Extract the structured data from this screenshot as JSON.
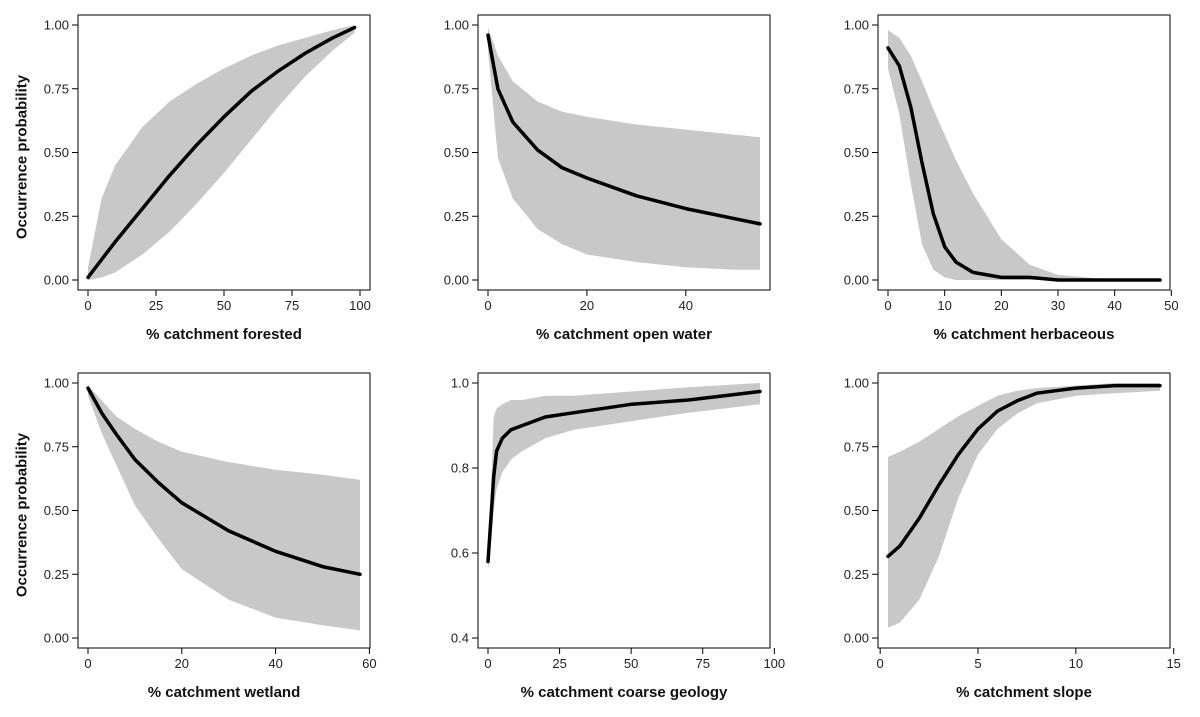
{
  "ylabel": "Occurrence probability",
  "colors": {
    "band": "#c8c8c8",
    "line": "#000000",
    "axis": "#000000"
  },
  "chart_data": [
    {
      "type": "line",
      "xlabel": "% catchment forested",
      "xlim": [
        0,
        100
      ],
      "ylim": [
        0.0,
        1.0
      ],
      "xticks": [
        "0",
        "25",
        "50",
        "75",
        "100"
      ],
      "yticks": [
        "0.00",
        "0.25",
        "0.50",
        "0.75",
        "1.00"
      ],
      "x": [
        0,
        5,
        10,
        20,
        30,
        40,
        50,
        60,
        70,
        80,
        90,
        98
      ],
      "y": [
        0.01,
        0.08,
        0.15,
        0.28,
        0.41,
        0.53,
        0.64,
        0.74,
        0.82,
        0.89,
        0.95,
        0.99
      ],
      "lower": [
        0.0,
        0.01,
        0.03,
        0.1,
        0.19,
        0.3,
        0.42,
        0.55,
        0.68,
        0.8,
        0.9,
        0.97
      ],
      "upper": [
        0.05,
        0.32,
        0.45,
        0.6,
        0.7,
        0.77,
        0.83,
        0.88,
        0.92,
        0.95,
        0.98,
        1.0
      ]
    },
    {
      "type": "line",
      "xlabel": "% catchment open water",
      "xlim": [
        0,
        55
      ],
      "ylim": [
        0.0,
        1.0
      ],
      "xticks": [
        "0",
        "20",
        "40"
      ],
      "yticks": [
        "0.00",
        "0.25",
        "0.50",
        "0.75",
        "1.00"
      ],
      "x": [
        0,
        2,
        5,
        10,
        15,
        20,
        30,
        40,
        50,
        55
      ],
      "y": [
        0.96,
        0.75,
        0.62,
        0.51,
        0.44,
        0.4,
        0.33,
        0.28,
        0.24,
        0.22
      ],
      "lower": [
        0.9,
        0.48,
        0.32,
        0.2,
        0.14,
        0.1,
        0.07,
        0.05,
        0.04,
        0.04
      ],
      "upper": [
        0.99,
        0.88,
        0.78,
        0.7,
        0.66,
        0.64,
        0.61,
        0.59,
        0.57,
        0.56
      ]
    },
    {
      "type": "line",
      "xlabel": "% catchment herbaceous",
      "xlim": [
        0,
        48
      ],
      "ylim": [
        0.0,
        1.0
      ],
      "xticks": [
        "0",
        "10",
        "20",
        "30",
        "40",
        "50"
      ],
      "yticks": [
        "0.00",
        "0.25",
        "0.50",
        "0.75",
        "1.00"
      ],
      "x": [
        0,
        2,
        4,
        6,
        8,
        10,
        12,
        15,
        20,
        25,
        30,
        40,
        48
      ],
      "y": [
        0.91,
        0.84,
        0.68,
        0.46,
        0.26,
        0.13,
        0.07,
        0.03,
        0.01,
        0.01,
        0.0,
        0.0,
        0.0
      ],
      "lower": [
        0.83,
        0.65,
        0.38,
        0.14,
        0.04,
        0.01,
        0.0,
        0.0,
        0.0,
        0.0,
        0.0,
        0.0,
        0.0
      ],
      "upper": [
        0.98,
        0.95,
        0.88,
        0.78,
        0.67,
        0.57,
        0.47,
        0.34,
        0.16,
        0.06,
        0.02,
        0.0,
        0.0
      ]
    },
    {
      "type": "line",
      "xlabel": "% catchment wetland",
      "xlim": [
        0,
        58
      ],
      "ylim": [
        0.0,
        1.0
      ],
      "xticks": [
        "0",
        "20",
        "40",
        "60"
      ],
      "yticks": [
        "0.00",
        "0.25",
        "0.50",
        "0.75",
        "1.00"
      ],
      "x": [
        0,
        3,
        6,
        10,
        15,
        20,
        30,
        40,
        50,
        58
      ],
      "y": [
        0.98,
        0.88,
        0.8,
        0.7,
        0.61,
        0.53,
        0.42,
        0.34,
        0.28,
        0.25
      ],
      "lower": [
        0.95,
        0.8,
        0.68,
        0.52,
        0.39,
        0.27,
        0.15,
        0.08,
        0.05,
        0.03
      ],
      "upper": [
        0.99,
        0.93,
        0.87,
        0.82,
        0.77,
        0.73,
        0.69,
        0.66,
        0.64,
        0.62
      ]
    },
    {
      "type": "line",
      "xlabel": "% catchment coarse geology",
      "xlim": [
        0,
        95
      ],
      "ylim": [
        0.4,
        1.0
      ],
      "xticks": [
        "0",
        "25",
        "50",
        "75",
        "100"
      ],
      "yticks": [
        "0.4",
        "0.6",
        "0.8",
        "1.0"
      ],
      "x": [
        0,
        1,
        2,
        3,
        5,
        8,
        12,
        20,
        30,
        50,
        70,
        95
      ],
      "y": [
        0.58,
        0.68,
        0.78,
        0.84,
        0.87,
        0.89,
        0.9,
        0.92,
        0.93,
        0.95,
        0.96,
        0.98
      ],
      "lower": [
        0.56,
        0.62,
        0.7,
        0.75,
        0.79,
        0.82,
        0.84,
        0.87,
        0.89,
        0.91,
        0.93,
        0.95
      ],
      "upper": [
        0.6,
        0.74,
        0.92,
        0.94,
        0.95,
        0.96,
        0.96,
        0.97,
        0.97,
        0.98,
        0.99,
        1.0
      ]
    },
    {
      "type": "line",
      "xlabel": "% catchment slope",
      "xlim": [
        0.4,
        14.3
      ],
      "ylim": [
        0.0,
        1.0
      ],
      "xticks": [
        "0",
        "5",
        "10",
        "15"
      ],
      "yticks": [
        "0.00",
        "0.25",
        "0.50",
        "0.75",
        "1.00"
      ],
      "x": [
        0.4,
        1,
        2,
        3,
        4,
        5,
        6,
        7,
        8,
        10,
        12,
        14.3
      ],
      "y": [
        0.32,
        0.36,
        0.47,
        0.6,
        0.72,
        0.82,
        0.89,
        0.93,
        0.96,
        0.98,
        0.99,
        0.99
      ],
      "lower": [
        0.04,
        0.06,
        0.15,
        0.32,
        0.55,
        0.72,
        0.82,
        0.88,
        0.92,
        0.95,
        0.96,
        0.97
      ],
      "upper": [
        0.71,
        0.73,
        0.77,
        0.82,
        0.87,
        0.91,
        0.95,
        0.97,
        0.98,
        0.99,
        1.0,
        1.0
      ]
    }
  ]
}
